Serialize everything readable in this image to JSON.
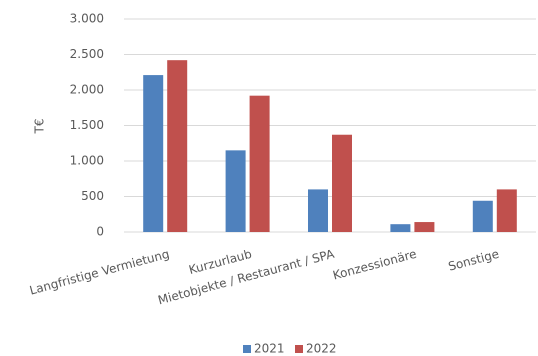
{
  "chart_data": {
    "type": "bar",
    "y_label": "T€",
    "categories": [
      "Langfristige Vermietung",
      "Kurzurlaub",
      "Mietobjekte / Restaurant / SPA",
      "Konzessionäre",
      "Sonstige"
    ],
    "series": [
      {
        "name": "2021",
        "color": "#4f81bd",
        "values": [
          2210,
          1150,
          600,
          110,
          440
        ]
      },
      {
        "name": "2022",
        "color": "#c0504d",
        "values": [
          2420,
          1920,
          1370,
          140,
          600
        ]
      }
    ],
    "ylim": [
      0,
      3000
    ],
    "yticks": [
      0,
      500,
      {
        "value": 1000,
        "label": "1.000"
      },
      {
        "value": 1500,
        "label": "1.500"
      },
      {
        "value": 2000,
        "label": "2.000"
      },
      {
        "value": 2500,
        "label": "2.500"
      },
      {
        "value": 3000,
        "label": "3.000"
      }
    ],
    "grid": true,
    "legend": "bottom"
  }
}
